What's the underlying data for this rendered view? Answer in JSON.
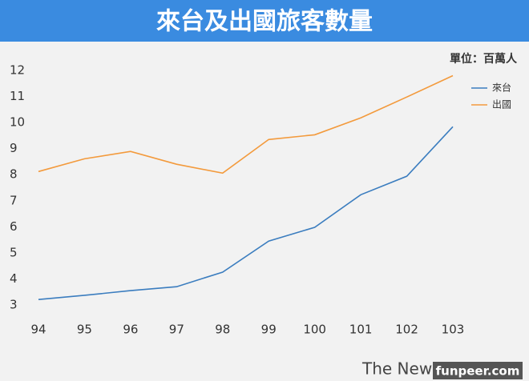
{
  "chart_data": {
    "type": "line",
    "title": "來台及出國旅客數量",
    "unit_label": "單位：百萬人",
    "categories": [
      "94",
      "95",
      "96",
      "97",
      "98",
      "99",
      "100",
      "101",
      "102",
      "103"
    ],
    "series": [
      {
        "name": "來台",
        "color": "#3b7dbf",
        "values": [
          3.21,
          3.37,
          3.55,
          3.7,
          4.26,
          5.45,
          5.98,
          7.23,
          7.94,
          9.84
        ]
      },
      {
        "name": "出國",
        "color": "#f39a3c",
        "values": [
          8.12,
          8.61,
          8.89,
          8.4,
          8.06,
          9.35,
          9.53,
          10.18,
          10.98,
          11.8
        ]
      }
    ],
    "ylim": [
      3,
      12
    ],
    "yticks": [
      3,
      4,
      5,
      6,
      7,
      8,
      9,
      10,
      11,
      12
    ],
    "grid": false,
    "legend": "top-right"
  },
  "footer": {
    "source": "The News",
    "watermark": "funpeer.com"
  }
}
